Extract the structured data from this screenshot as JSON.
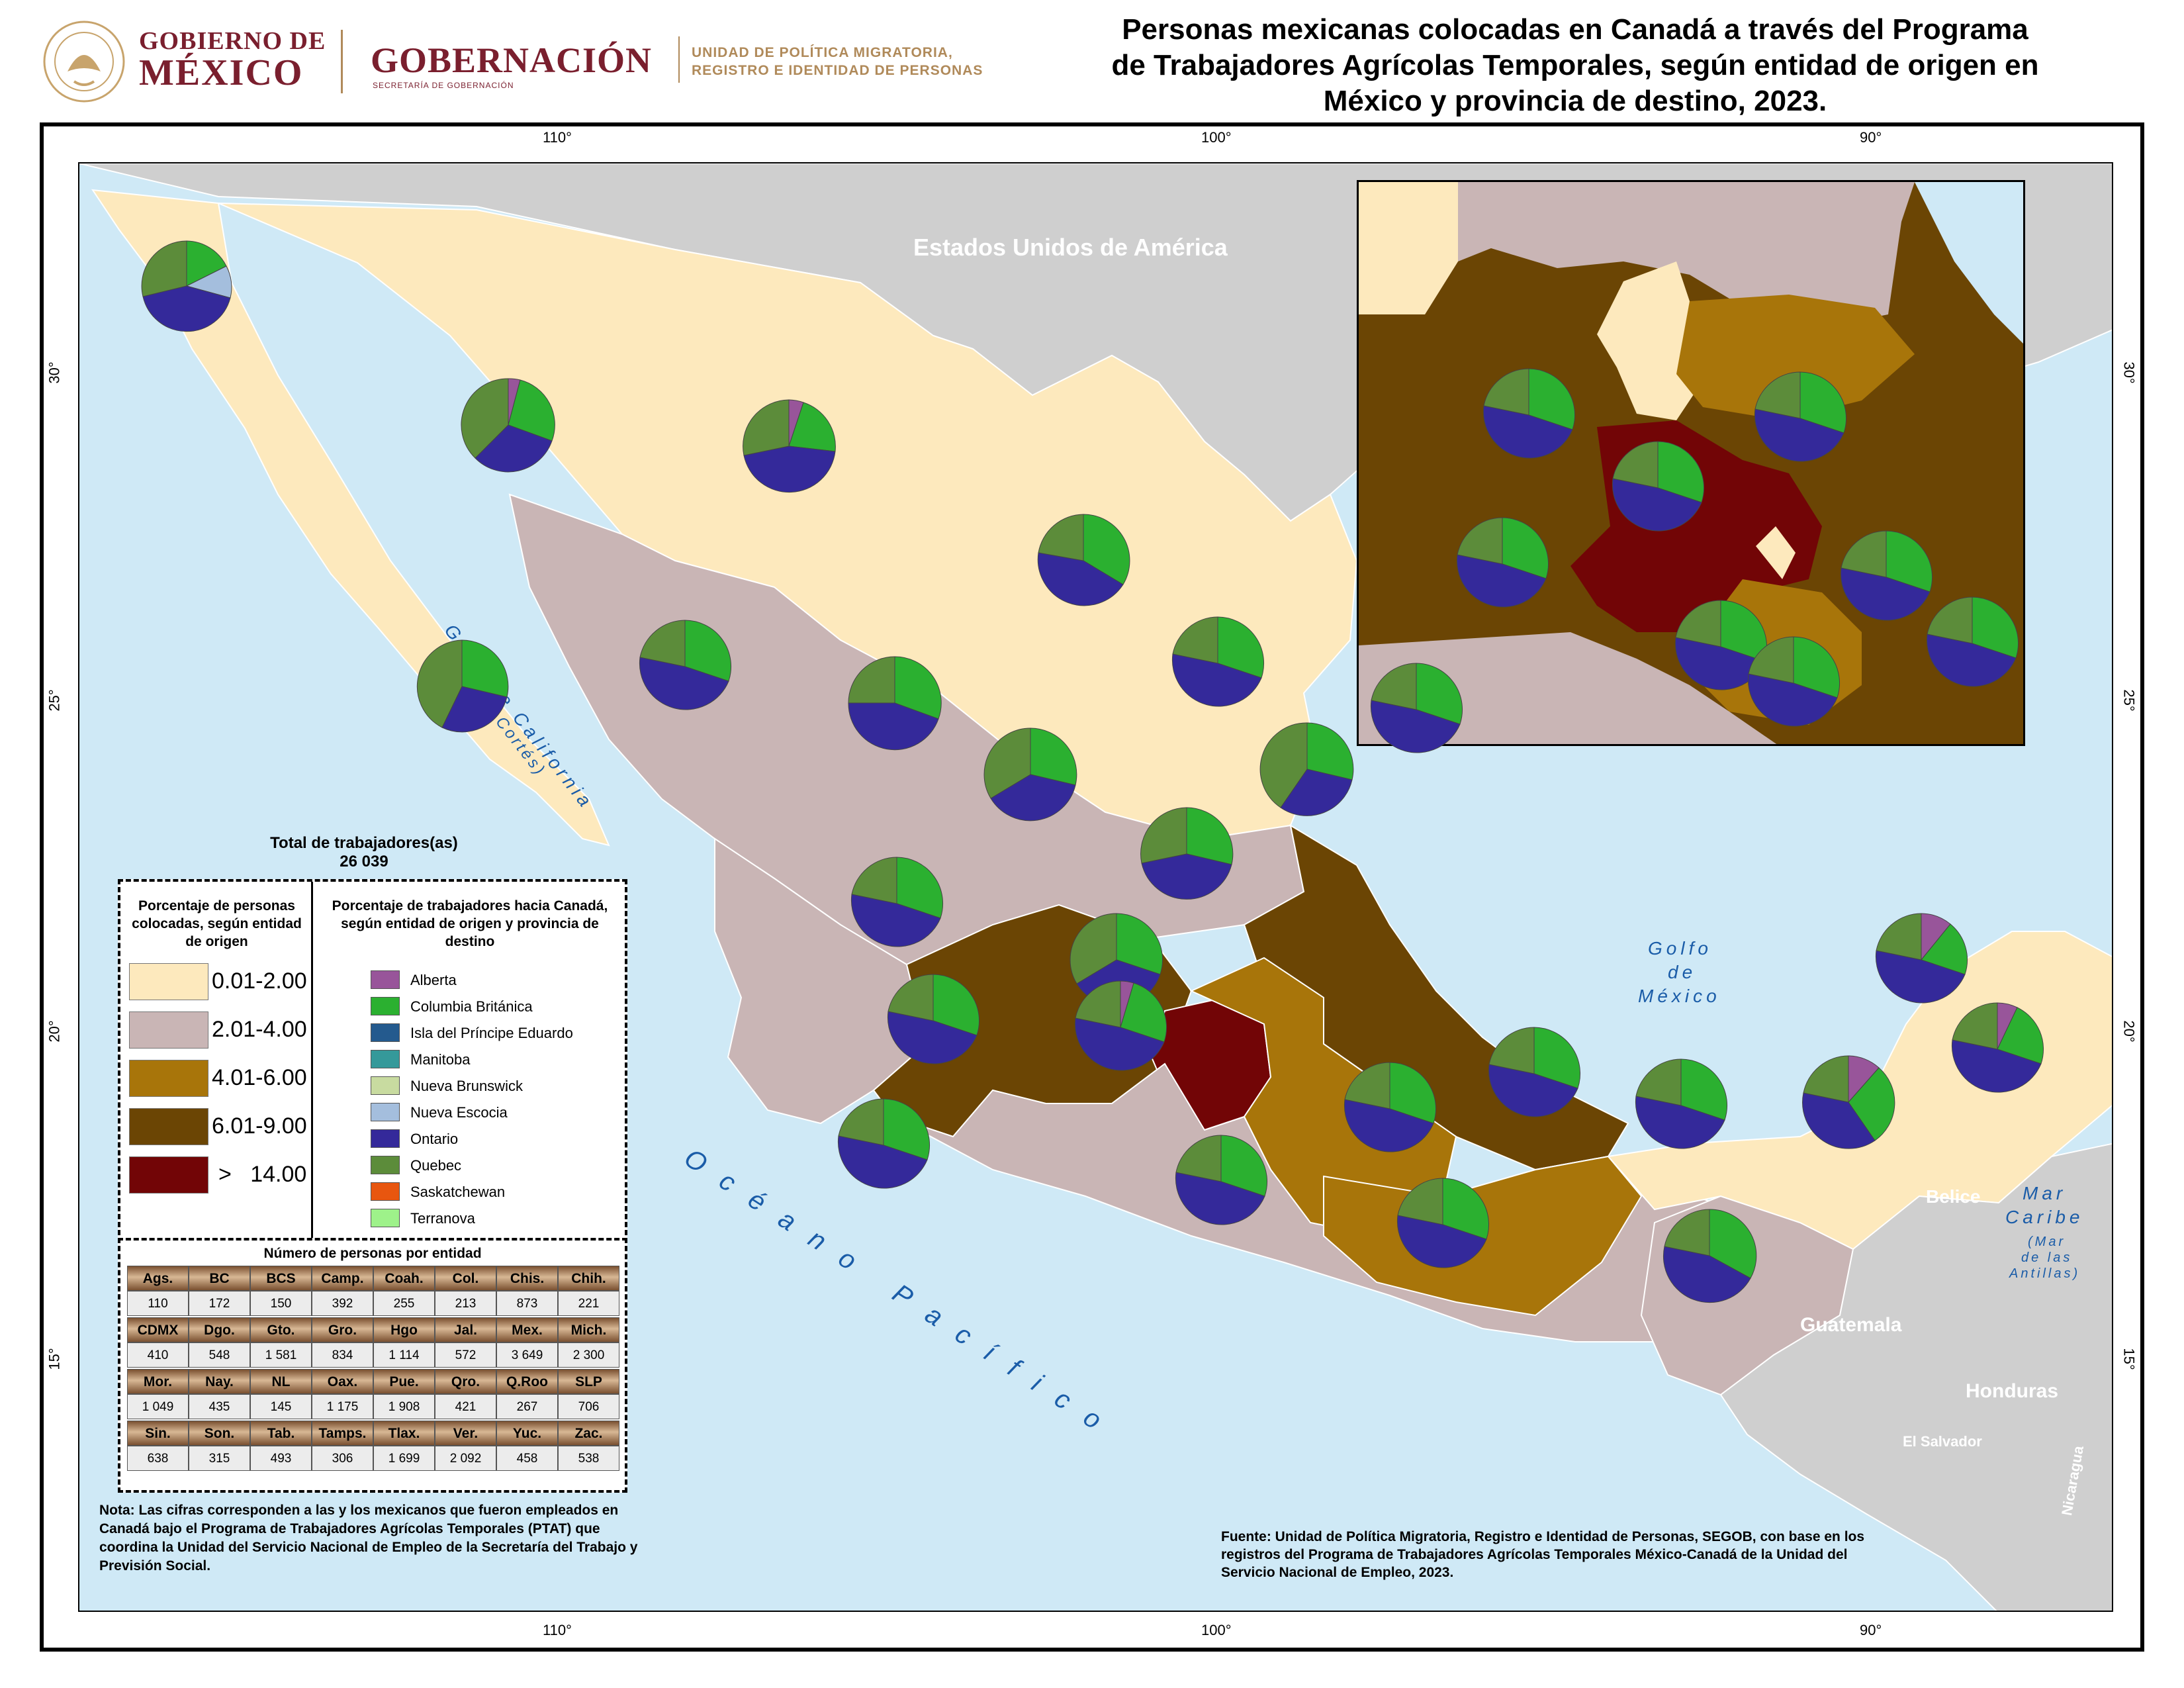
{
  "header": {
    "gob_line1": "GOBIERNO DE",
    "gob_line2": "MÉXICO",
    "gobernacion": "GOBERNACIÓN",
    "gobernacion_sub": "SECRETARÍA DE GOBERNACIÓN",
    "upm_line1": "UNIDAD DE POLÍTICA MIGRATORIA,",
    "upm_line2": "REGISTRO E IDENTIDAD DE PERSONAS",
    "title_line1": "Personas mexicanas colocadas en Canadá a través del Programa",
    "title_line2": "de Trabajadores Agrícolas Temporales, según entidad de origen en",
    "title_line3": "México y provincia de destino, 2023."
  },
  "grid_labels": {
    "lon": [
      "110°",
      "100°",
      "90°"
    ],
    "lat": [
      "30°",
      "25°",
      "20°",
      "15°"
    ]
  },
  "map_labels": {
    "usa": "Estados Unidos de América",
    "golfo_california_1": "Golfo de California",
    "golfo_california_2": "(Mar de Cortés)",
    "golfo_mexico_1": "Golfo",
    "golfo_mexico_2": "de",
    "golfo_mexico_3": "México",
    "oceano": "Océano Pacífico",
    "mar_caribe_1": "Mar",
    "mar_caribe_2": "Caribe",
    "mar_caribe_3": "(Mar",
    "mar_caribe_4": "de las",
    "mar_caribe_5": "Antillas)",
    "belice": "Belice",
    "guatemala": "Guatemala",
    "honduras": "Honduras",
    "el_salvador": "El Salvador",
    "nicaragua": "Nicaragua"
  },
  "total": {
    "label": "Total de trabajadores(as)",
    "value": "26 039"
  },
  "legend_choropleth": {
    "title": "Porcentaje de personas colocadas, según entidad de origen",
    "classes": [
      {
        "label": "0.01-2.00",
        "color": "#fde9bd"
      },
      {
        "label": "2.01-4.00",
        "color": "#c9b5b5"
      },
      {
        "label": "4.01-6.00",
        "color": "#a8750a"
      },
      {
        "label": "6.01-9.00",
        "color": "#6b4504"
      },
      {
        "label": ">   14.00",
        "color": "#720506"
      }
    ]
  },
  "legend_provinces": {
    "title": "Porcentaje de trabajadores hacia Canadá, según entidad de origen y provincia de destino",
    "items": [
      {
        "label": "Alberta",
        "color": "#98559a"
      },
      {
        "label": "Columbia Británica",
        "color": "#2bb030"
      },
      {
        "label": "Isla del Príncipe Eduardo",
        "color": "#245a8e"
      },
      {
        "label": "Manitoba",
        "color": "#35999a"
      },
      {
        "label": "Nueva Brunswick",
        "color": "#c8dba0"
      },
      {
        "label": "Nueva Escocia",
        "color": "#a4bedd"
      },
      {
        "label": "Ontario",
        "color": "#34299a"
      },
      {
        "label": "Quebec",
        "color": "#5c8c3a"
      },
      {
        "label": "Saskatchewan",
        "color": "#e8560f"
      },
      {
        "label": "Terranova",
        "color": "#9ef28a"
      }
    ]
  },
  "table": {
    "title": "Número de personas por entidad",
    "rows": [
      {
        "names": [
          "Ags.",
          "BC",
          "BCS",
          "Camp.",
          "Coah.",
          "Col.",
          "Chis.",
          "Chih."
        ],
        "values": [
          "110",
          "172",
          "150",
          "392",
          "255",
          "213",
          "873",
          "221"
        ]
      },
      {
        "names": [
          "CDMX",
          "Dgo.",
          "Gto.",
          "Gro.",
          "Hgo",
          "Jal.",
          "Mex.",
          "Mich."
        ],
        "values": [
          "410",
          "548",
          "1 581",
          "834",
          "1 114",
          "572",
          "3 649",
          "2 300"
        ]
      },
      {
        "names": [
          "Mor.",
          "Nay.",
          "NL",
          "Oax.",
          "Pue.",
          "Qro.",
          "Q.Roo",
          "SLP"
        ],
        "values": [
          "1 049",
          "435",
          "145",
          "1 175",
          "1 908",
          "421",
          "267",
          "706"
        ]
      },
      {
        "names": [
          "Sin.",
          "Son.",
          "Tab.",
          "Tamps.",
          "Tlax.",
          "Ver.",
          "Yuc.",
          "Zac."
        ],
        "values": [
          "638",
          "315",
          "493",
          "306",
          "1 699",
          "2 092",
          "458",
          "538"
        ]
      }
    ]
  },
  "nota": "Nota: Las cifras corresponden a las y los mexicanos que fueron empleados en Canadá bajo el Programa de Trabajadores Agrícolas Temporales (PTAT) que coordina la  Unidad del Servicio Nacional de Empleo de la Secretaría del Trabajo y Previsión Social.",
  "fuente": "Fuente: Unidad de Política Migratoria, Registro e Identidad de Personas, SEGOB, con base en los registros del Programa de Trabajadores Agrícolas Temporales México-Canadá de la Unidad del Servicio Nacional de Empleo, 2023."
}
